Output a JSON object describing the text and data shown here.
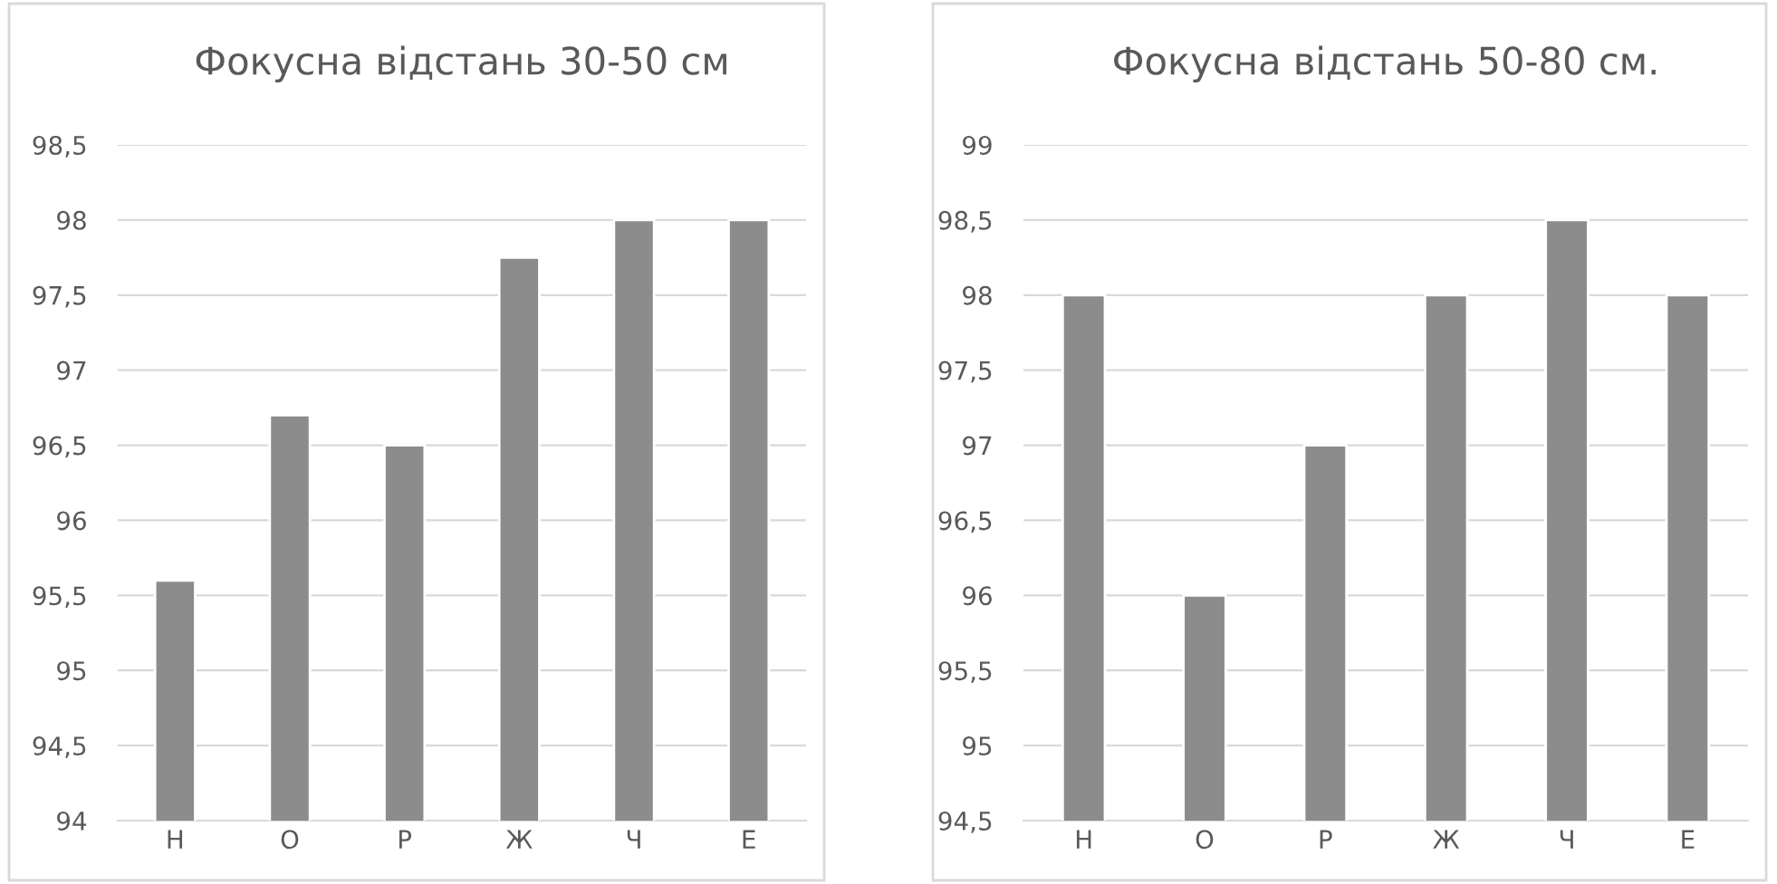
{
  "chart_data": [
    {
      "type": "bar",
      "title": "Фокусна відстань 30-50 см",
      "categories": [
        "Н",
        "О",
        "Р",
        "Ж",
        "Ч",
        "Е"
      ],
      "values": [
        95.6,
        96.7,
        96.5,
        97.75,
        98,
        98
      ],
      "color": "#8c8c8c",
      "ylim": [
        94,
        98.5
      ],
      "yticks": [
        94,
        {
          "value": 94.5,
          "label": "94,5"
        },
        95,
        {
          "value": 95.5,
          "label": "95,5"
        },
        96,
        {
          "value": 96.5,
          "label": "96,5"
        },
        97,
        {
          "value": 97.5,
          "label": "97,5"
        },
        98,
        {
          "value": 98.5,
          "label": "98,5"
        }
      ],
      "grid": "y",
      "legend": false
    },
    {
      "type": "bar",
      "title": "Фокусна відстань 50-80 см.",
      "categories": [
        "Н",
        "О",
        "Р",
        "Ж",
        "Ч",
        "Е"
      ],
      "values": [
        98,
        96,
        97,
        98,
        98.5,
        98
      ],
      "color": "#8c8c8c",
      "ylim": [
        94.5,
        99
      ],
      "yticks": [
        {
          "value": 94.5,
          "label": "94,5"
        },
        95,
        {
          "value": 95.5,
          "label": "95,5"
        },
        96,
        {
          "value": 96.5,
          "label": "96,5"
        },
        97,
        {
          "value": 97.5,
          "label": "97,5"
        },
        98,
        {
          "value": 98.5,
          "label": "98,5"
        },
        99
      ],
      "grid": "y",
      "legend": false
    }
  ]
}
